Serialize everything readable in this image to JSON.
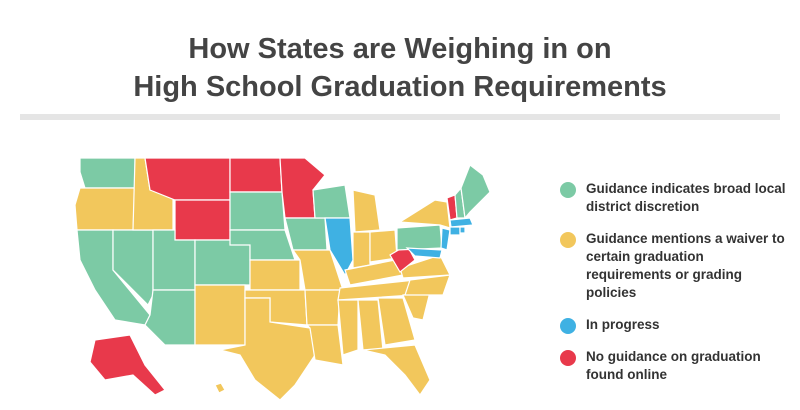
{
  "title": {
    "line1": "How States are Weighing in on",
    "line2": "High School Graduation Requirements"
  },
  "colors": {
    "local": "#7ccaa5",
    "waiver": "#f2c75c",
    "progress": "#3fb1e3",
    "none": "#e8394b"
  },
  "legend": [
    {
      "key": "local",
      "label": "Guidance indicates broad local district discretion"
    },
    {
      "key": "waiver",
      "label": "Guidance mentions a waiver to certain graduation requirements or grading policies"
    },
    {
      "key": "progress",
      "label": "In progress"
    },
    {
      "key": "none",
      "label": "No guidance on graduation found online"
    }
  ]
}
